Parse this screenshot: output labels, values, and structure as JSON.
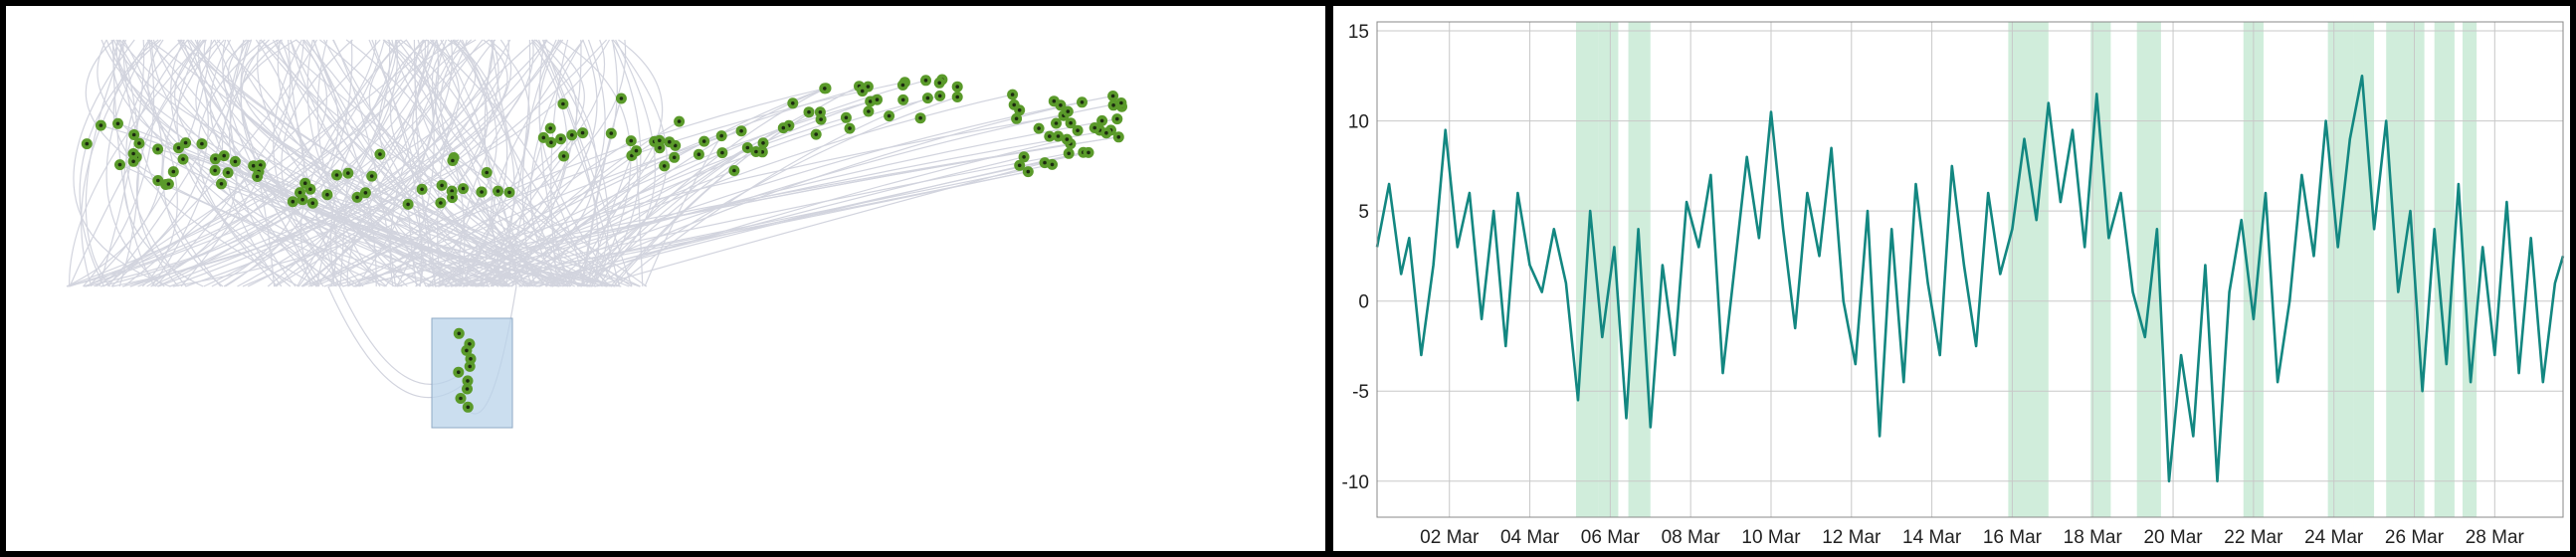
{
  "colors": {
    "background": "#ffffff",
    "border": "#000000",
    "edge_lines": "#d2d4de",
    "node_fill": "#5a9a2a",
    "node_center": "#1c2a10",
    "selection_fill": "#b9d3ea",
    "selection_stroke": "#8fa9c4",
    "series_line": "#138781",
    "highlight_band": "#b7e4c8",
    "grid": "#c8c8c8"
  },
  "chart_data": [
    {
      "type": "scatter",
      "title": "",
      "xlabel": "",
      "ylabel": "",
      "grid": false,
      "legend": "none",
      "description_free": true,
      "selection_present": true
    },
    {
      "type": "line",
      "title": "",
      "xlabel": "",
      "ylabel": "",
      "x_unit": "day of March (continuous)",
      "xlim": [
        0.2,
        29.7
      ],
      "ylim": [
        -12,
        15.5
      ],
      "y_ticks": [
        15,
        10,
        5,
        0,
        -5,
        -10
      ],
      "y_tick_labels": [
        "15",
        "10",
        "5",
        "0",
        "-5",
        "-10"
      ],
      "x_ticks": [
        2,
        4,
        6,
        8,
        10,
        12,
        14,
        16,
        18,
        20,
        22,
        24,
        26,
        28
      ],
      "x_tick_labels": [
        "02 Mar",
        "04 Mar",
        "06 Mar",
        "08 Mar",
        "10 Mar",
        "12 Mar",
        "14 Mar",
        "16 Mar",
        "18 Mar",
        "20 Mar",
        "22 Mar",
        "24 Mar",
        "26 Mar",
        "28 Mar"
      ],
      "grid": true,
      "legend": "none",
      "highlight_ranges": [
        [
          5.15,
          5.7
        ],
        [
          5.7,
          6.2
        ],
        [
          6.45,
          7.0
        ],
        [
          15.9,
          16.9
        ],
        [
          17.95,
          18.45
        ],
        [
          19.1,
          19.7
        ],
        [
          21.75,
          22.25
        ],
        [
          23.85,
          24.5
        ],
        [
          24.5,
          25.0
        ],
        [
          25.3,
          26.25
        ],
        [
          26.5,
          27.0
        ],
        [
          27.2,
          27.55
        ]
      ],
      "series": [
        {
          "values": [
            [
              0.2,
              3.0
            ],
            [
              0.5,
              6.5
            ],
            [
              0.8,
              1.5
            ],
            [
              1.0,
              3.5
            ],
            [
              1.3,
              -3.0
            ],
            [
              1.6,
              2.0
            ],
            [
              1.9,
              9.5
            ],
            [
              2.2,
              3.0
            ],
            [
              2.5,
              6.0
            ],
            [
              2.8,
              -1.0
            ],
            [
              3.1,
              5.0
            ],
            [
              3.4,
              -2.5
            ],
            [
              3.7,
              6.0
            ],
            [
              4.0,
              2.0
            ],
            [
              4.3,
              0.5
            ],
            [
              4.6,
              4.0
            ],
            [
              4.9,
              1.0
            ],
            [
              5.2,
              -5.5
            ],
            [
              5.5,
              5.0
            ],
            [
              5.8,
              -2.0
            ],
            [
              6.1,
              3.0
            ],
            [
              6.4,
              -6.5
            ],
            [
              6.7,
              4.0
            ],
            [
              7.0,
              -7.0
            ],
            [
              7.3,
              2.0
            ],
            [
              7.6,
              -3.0
            ],
            [
              7.9,
              5.5
            ],
            [
              8.2,
              3.0
            ],
            [
              8.5,
              7.0
            ],
            [
              8.8,
              -4.0
            ],
            [
              9.1,
              2.0
            ],
            [
              9.4,
              8.0
            ],
            [
              9.7,
              3.5
            ],
            [
              10.0,
              10.5
            ],
            [
              10.3,
              4.0
            ],
            [
              10.6,
              -1.5
            ],
            [
              10.9,
              6.0
            ],
            [
              11.2,
              2.5
            ],
            [
              11.5,
              8.5
            ],
            [
              11.8,
              0.0
            ],
            [
              12.1,
              -3.5
            ],
            [
              12.4,
              5.0
            ],
            [
              12.7,
              -7.5
            ],
            [
              13.0,
              4.0
            ],
            [
              13.3,
              -4.5
            ],
            [
              13.6,
              6.5
            ],
            [
              13.9,
              1.0
            ],
            [
              14.2,
              -3.0
            ],
            [
              14.5,
              7.5
            ],
            [
              14.8,
              2.0
            ],
            [
              15.1,
              -2.5
            ],
            [
              15.4,
              6.0
            ],
            [
              15.7,
              1.5
            ],
            [
              16.0,
              4.0
            ],
            [
              16.3,
              9.0
            ],
            [
              16.6,
              4.5
            ],
            [
              16.9,
              11.0
            ],
            [
              17.2,
              5.5
            ],
            [
              17.5,
              9.5
            ],
            [
              17.8,
              3.0
            ],
            [
              18.1,
              11.5
            ],
            [
              18.4,
              3.5
            ],
            [
              18.7,
              6.0
            ],
            [
              19.0,
              0.5
            ],
            [
              19.3,
              -2.0
            ],
            [
              19.6,
              4.0
            ],
            [
              19.9,
              -10.0
            ],
            [
              20.2,
              -3.0
            ],
            [
              20.5,
              -7.5
            ],
            [
              20.8,
              2.0
            ],
            [
              21.1,
              -10.0
            ],
            [
              21.4,
              0.5
            ],
            [
              21.7,
              4.5
            ],
            [
              22.0,
              -1.0
            ],
            [
              22.3,
              6.0
            ],
            [
              22.6,
              -4.5
            ],
            [
              22.9,
              0.0
            ],
            [
              23.2,
              7.0
            ],
            [
              23.5,
              2.5
            ],
            [
              23.8,
              10.0
            ],
            [
              24.1,
              3.0
            ],
            [
              24.4,
              9.0
            ],
            [
              24.7,
              12.5
            ],
            [
              25.0,
              4.0
            ],
            [
              25.3,
              10.0
            ],
            [
              25.6,
              0.5
            ],
            [
              25.9,
              5.0
            ],
            [
              26.2,
              -5.0
            ],
            [
              26.5,
              4.0
            ],
            [
              26.8,
              -3.5
            ],
            [
              27.1,
              6.5
            ],
            [
              27.4,
              -4.5
            ],
            [
              27.7,
              3.0
            ],
            [
              28.0,
              -3.0
            ],
            [
              28.3,
              5.5
            ],
            [
              28.6,
              -4.0
            ],
            [
              28.9,
              3.5
            ],
            [
              29.2,
              -4.5
            ],
            [
              29.5,
              1.0
            ],
            [
              29.7,
              2.5
            ]
          ]
        }
      ]
    }
  ]
}
